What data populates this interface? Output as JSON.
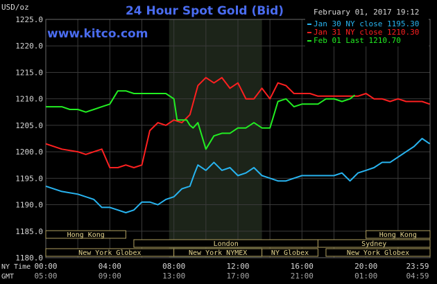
{
  "chart_data": {
    "type": "line",
    "title": "24 Hour Spot Gold (Bid)",
    "watermark": "www.kitco.com",
    "timestamp": "February 01, 2017 19:12",
    "ylabel": "USD/oz",
    "ylim": [
      1180,
      1225
    ],
    "yticks": [
      1180.0,
      1185.0,
      1190.0,
      1195.0,
      1200.0,
      1205.0,
      1210.0,
      1215.0,
      1220.0,
      1225.0
    ],
    "y_tick_labels": [
      "1180.0",
      "1185.0",
      "1190.0",
      "1195.0",
      "1200.0",
      "1205.0",
      "1210.0",
      "1215.0",
      "1220.0",
      "1225.0"
    ],
    "grid": true,
    "legend_position": "top-right",
    "x_axis_rows": [
      {
        "label": "NY Time",
        "ticks": [
          "00:00",
          "04:00",
          "08:00",
          "12:00",
          "16:00",
          "20:00",
          "23:59"
        ]
      },
      {
        "label": "GMT",
        "ticks": [
          "05:00",
          "09:00",
          "13:00",
          "17:00",
          "21:00",
          "01:00",
          "04:59"
        ]
      }
    ],
    "x_hours": [
      0,
      4,
      8,
      12,
      16,
      20,
      23.98
    ],
    "shaded_region_hours": [
      7.7,
      13.5
    ],
    "sessions": [
      {
        "name": "Hong Kong",
        "row": 0,
        "start": 0,
        "end": 5
      },
      {
        "name": "Hong Kong",
        "row": 0,
        "start": 20,
        "end": 24
      },
      {
        "name": "London",
        "row": 1,
        "start": 5.5,
        "end": 17
      },
      {
        "name": "Sydney",
        "row": 1,
        "start": 17,
        "end": 24
      },
      {
        "name": "New York Globex",
        "row": 2,
        "start": 0,
        "end": 8
      },
      {
        "name": "New York NYMEX",
        "row": 2,
        "start": 8,
        "end": 13.5
      },
      {
        "name": "NY Globex",
        "row": 2,
        "start": 13.5,
        "end": 17
      },
      {
        "name": "New York Globex",
        "row": 2,
        "start": 17.5,
        "end": 24
      }
    ],
    "series": [
      {
        "name": "Jan 30 NY close 1195.30",
        "color": "#28b4f0",
        "x": [
          0,
          1,
          2,
          3,
          3.5,
          4,
          4.5,
          5,
          5.5,
          6,
          6.5,
          7,
          7.5,
          8,
          8.5,
          9,
          9.3,
          9.5,
          10,
          10.5,
          11,
          11.5,
          12,
          12.5,
          13,
          13.5,
          14,
          14.5,
          15,
          15.5,
          16,
          16.5,
          17,
          17.5,
          18,
          18.5,
          19,
          19.5,
          20,
          20.5,
          21,
          21.5,
          22,
          22.5,
          23,
          23.5,
          23.98
        ],
        "values": [
          1193.5,
          1192.5,
          1192,
          1191,
          1189.5,
          1189.5,
          1189,
          1188.5,
          1189,
          1190.5,
          1190.5,
          1190,
          1191,
          1191.5,
          1193,
          1193.5,
          1196,
          1197.5,
          1196.5,
          1198,
          1196.5,
          1197,
          1195.5,
          1196,
          1197,
          1195.5,
          1195,
          1194.5,
          1194.5,
          1195,
          1195.5,
          1195.5,
          1195.5,
          1195.5,
          1195.5,
          1196,
          1194.5,
          1196,
          1196.5,
          1197,
          1198,
          1198,
          1199,
          1200,
          1201,
          1202.5,
          1201.5
        ]
      },
      {
        "name": "Jan 31 NY close 1210.30",
        "color": "#ff2020",
        "x": [
          0,
          1,
          2,
          2.5,
          3,
          3.5,
          4,
          4.5,
          5,
          5.5,
          6,
          6.5,
          7,
          7.5,
          8,
          8.5,
          9,
          9.5,
          10,
          10.5,
          11,
          11.5,
          12,
          12.5,
          13,
          13.5,
          14,
          14.5,
          15,
          15.5,
          16,
          16.5,
          17,
          17.5,
          18,
          18.5,
          19,
          19.5,
          20,
          20.5,
          21,
          21.5,
          22,
          22.5,
          23,
          23.5,
          23.98
        ],
        "values": [
          1201.5,
          1200.5,
          1200,
          1199.5,
          1200,
          1200.5,
          1197,
          1197,
          1197.5,
          1197,
          1197.5,
          1204,
          1205.5,
          1205,
          1206,
          1205.5,
          1207,
          1212.5,
          1214,
          1213,
          1214,
          1212,
          1213,
          1210,
          1210,
          1212,
          1210,
          1213,
          1212.5,
          1211,
          1211,
          1211,
          1210.5,
          1210.5,
          1210.5,
          1210.5,
          1210.5,
          1210.5,
          1211,
          1210,
          1210,
          1209.5,
          1210,
          1209.5,
          1209.5,
          1209.5,
          1209
        ]
      },
      {
        "name": "Feb 01 Last 1210.70",
        "color": "#22ee22",
        "x": [
          0,
          1,
          1.5,
          2,
          2.5,
          3,
          3.5,
          4,
          4.5,
          5,
          5.5,
          6,
          6.5,
          7,
          7.5,
          8,
          8.2,
          8.5,
          8.8,
          9,
          9.2,
          9.5,
          10,
          10.5,
          11,
          11.5,
          12,
          12.5,
          13,
          13.5,
          14,
          14.5,
          15,
          15.5,
          16,
          16.5,
          17,
          17.5,
          18,
          18.5,
          19,
          19.3
        ],
        "values": [
          1208.5,
          1208.5,
          1208,
          1208,
          1207.5,
          1208,
          1208.5,
          1209,
          1211.5,
          1211.5,
          1211,
          1211,
          1211,
          1211,
          1211,
          1210,
          1206,
          1206,
          1206,
          1205,
          1204.5,
          1205.5,
          1200.5,
          1203,
          1203.5,
          1203.5,
          1204.5,
          1204.5,
          1205.5,
          1204.5,
          1204.5,
          1209.5,
          1210,
          1208.5,
          1209,
          1209,
          1209,
          1210,
          1210,
          1209.5,
          1210,
          1210.7
        ]
      }
    ]
  }
}
